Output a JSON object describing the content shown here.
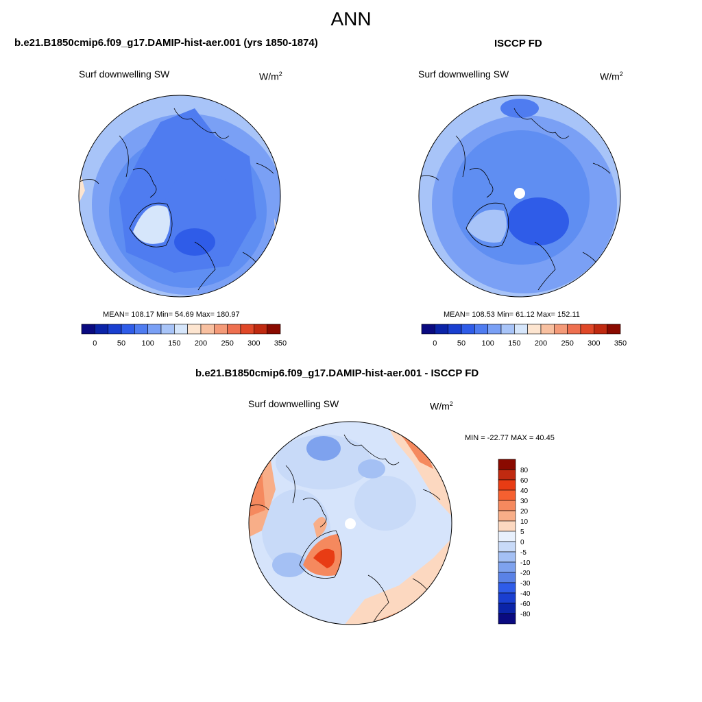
{
  "main_title": "ANN",
  "panels": [
    {
      "title": "b.e21.B1850cmip6.f09_g17.DAMIP-hist-aer.001 (yrs 1850-1874)",
      "variable": "Surf downwelling SW",
      "units_base": "W/m",
      "units_exp": "2",
      "stats": "MEAN= 108.17  Min=  54.69  Max= 180.97",
      "has_pole_hole": false
    },
    {
      "title": "ISCCP FD",
      "variable": "Surf downwelling SW",
      "units_base": "W/m",
      "units_exp": "2",
      "stats": "MEAN= 108.53  Min=  61.12  Max= 152.11",
      "has_pole_hole": true
    },
    {
      "title": "b.e21.B1850cmip6.f09_g17.DAMIP-hist-aer.001 - ISCCP FD",
      "variable": "Surf downwelling SW",
      "units_base": "W/m",
      "units_exp": "2",
      "stats": "MIN = -22.77 MAX =  40.45",
      "has_pole_hole": true
    }
  ],
  "colorbar_abs": {
    "colors": [
      "#0a0a80",
      "#0b24a8",
      "#1a3fd0",
      "#2f5ce8",
      "#4f7cf0",
      "#7aa0f5",
      "#a8c4f8",
      "#d6e6fb",
      "#fde5d0",
      "#f8c0a0",
      "#f49a78",
      "#ee7050",
      "#e04828",
      "#c02a10",
      "#8a0a00"
    ],
    "tick_labels": [
      "0",
      "50",
      "100",
      "150",
      "200",
      "250",
      "300",
      "350"
    ]
  },
  "colorbar_diff": {
    "colors": [
      "#8a0a00",
      "#c02a10",
      "#e83c14",
      "#f56030",
      "#f5895e",
      "#f8ae88",
      "#fcd8c0",
      "#e8f0fc",
      "#c8daf8",
      "#a4c0f4",
      "#7ea2ee",
      "#5a82e6",
      "#2f5ce8",
      "#1a3fd0",
      "#0b24a8",
      "#0a0a80"
    ],
    "tick_labels": [
      "80",
      "60",
      "40",
      "30",
      "20",
      "10",
      "5",
      "0",
      "-5",
      "-10",
      "-20",
      "-30",
      "-40",
      "-60",
      "-80"
    ]
  },
  "colors": {
    "ocean_model": "#5f8ef2",
    "ocean_obs": "#5f8ef2",
    "diff_base": "#d6e4fb"
  }
}
